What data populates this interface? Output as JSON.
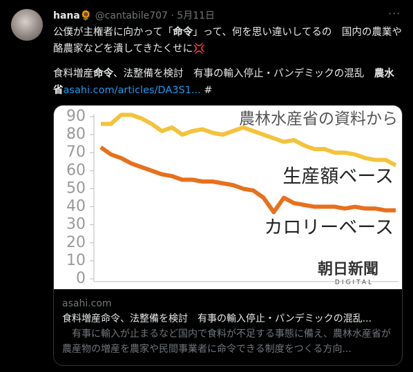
{
  "tweet": {
    "name": "hana🌻",
    "handle": "@cantabile707",
    "date": "5月11日",
    "para1": [
      {
        "text": "公僕が主権者に向かって「"
      },
      {
        "text": "命令",
        "bold": true
      },
      {
        "text": "」って、何を思い違いしてるの　国内の農業や酪農家などを潰してきたくせに💢"
      }
    ],
    "para2": [
      {
        "text": "食料増産"
      },
      {
        "text": "命令",
        "bold": true
      },
      {
        "text": "、法整備を検討　有事の輸入停止・パンデミックの混乱　"
      },
      {
        "text": "農水省",
        "bold": true
      },
      {
        "text": "asahi.com/articles/DA3S1...",
        "link": true
      },
      {
        "text": " #"
      }
    ]
  },
  "card": {
    "domain": "asahi.com",
    "title": "食料増産命令、法整備を検討　有事の輸入停止・パンデミックの混乱...",
    "description": "　有事に輸入が止まるなど国内で食料が不足する事態に備え、農林水産省が農産物の増産を農家や民間事業者に命令できる制度をつくる方向...",
    "logo": "朝日新聞",
    "logo_sub": "DIGITAL"
  },
  "chart_data": {
    "type": "line",
    "title": "農林水産省の資料から",
    "categories": [
      null,
      null,
      null,
      null,
      null,
      null,
      null,
      null,
      null,
      null,
      null,
      null,
      null,
      null,
      null,
      null,
      null,
      null,
      null,
      null,
      null,
      null,
      null,
      null,
      null,
      null,
      null,
      null,
      null,
      null
    ],
    "series": [
      {
        "name": "生産額ベース",
        "color": "#f3c33c",
        "values": [
          86,
          86,
          91,
          91,
          89,
          86,
          82,
          84,
          80,
          82,
          83,
          81,
          80,
          82,
          84,
          82,
          80,
          78,
          76,
          77,
          74,
          72,
          72,
          70,
          70,
          69,
          67,
          66,
          66,
          63
        ]
      },
      {
        "name": "カロリーベース",
        "color": "#e8701c",
        "values": [
          73,
          69,
          67,
          64,
          62,
          60,
          58,
          57,
          55,
          55,
          54,
          54,
          53,
          52,
          50,
          49,
          45,
          37,
          45,
          42,
          41,
          40,
          40,
          40,
          39,
          40,
          39,
          39,
          38,
          38
        ]
      }
    ],
    "ylim": [
      0,
      90
    ],
    "yticks": [
      0,
      10,
      20,
      30,
      40,
      50,
      60,
      70,
      80,
      90
    ]
  }
}
